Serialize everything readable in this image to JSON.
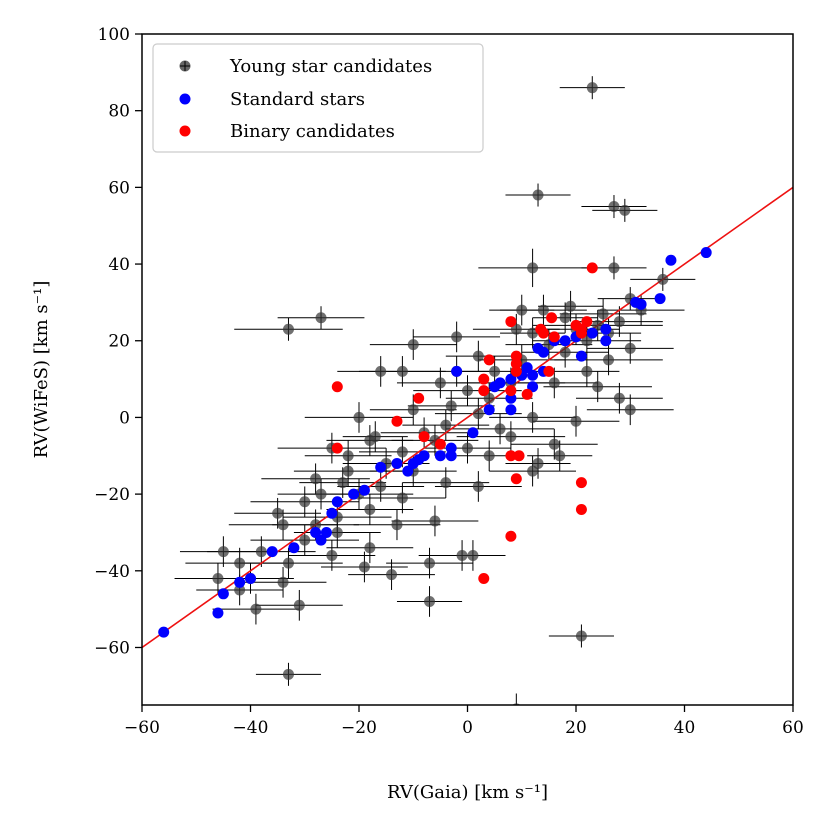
{
  "chart_data": {
    "type": "scatter",
    "xlabel": "RV(Gaia) [km s⁻¹]",
    "ylabel": "RV(WiFeS) [km s⁻¹]",
    "xlim": [
      -60,
      60
    ],
    "ylim": [
      -75,
      100
    ],
    "xticks": [
      -60,
      -40,
      -20,
      0,
      20,
      40,
      60
    ],
    "yticks": [
      -60,
      -40,
      -20,
      0,
      20,
      40,
      60,
      80,
      100
    ],
    "xtick_labels": [
      "−60",
      "−40",
      "−20",
      "0",
      "20",
      "40",
      "60"
    ],
    "ytick_labels": [
      "−60",
      "−40",
      "−20",
      "0",
      "20",
      "40",
      "60",
      "80",
      "100"
    ],
    "grid": false,
    "legend_position": "top-left",
    "reference_line": {
      "label": "",
      "x": [
        -60,
        60
      ],
      "y": [
        -60,
        60
      ],
      "color": "#ee1111"
    },
    "series": [
      {
        "name": "Young star candidates",
        "color": "#333333",
        "marker": "circle-with-errorbars",
        "points": [
          [
            23,
            86,
            6,
            3
          ],
          [
            13,
            58,
            6,
            3
          ],
          [
            27,
            55,
            6,
            3
          ],
          [
            29,
            54,
            6,
            3
          ],
          [
            12,
            39,
            10,
            5
          ],
          [
            27,
            39,
            6,
            3
          ],
          [
            36,
            36,
            6,
            3
          ],
          [
            30,
            31,
            6,
            3
          ],
          [
            -27,
            26,
            8,
            3
          ],
          [
            -33,
            23,
            10,
            3
          ],
          [
            14,
            28,
            8,
            4
          ],
          [
            10,
            28,
            6,
            4
          ],
          [
            -10,
            19,
            8,
            4
          ],
          [
            -2,
            21,
            8,
            4
          ],
          [
            24,
            24,
            12,
            4
          ],
          [
            28,
            25,
            8,
            4
          ],
          [
            22,
            20,
            10,
            4
          ],
          [
            18,
            17,
            8,
            4
          ],
          [
            26,
            15,
            10,
            4
          ],
          [
            30,
            18,
            8,
            4
          ],
          [
            -16,
            12,
            8,
            4
          ],
          [
            -12,
            12,
            8,
            4
          ],
          [
            -5,
            9,
            8,
            4
          ],
          [
            0,
            7,
            10,
            4
          ],
          [
            4,
            5,
            8,
            4
          ],
          [
            8,
            9,
            10,
            4
          ],
          [
            16,
            9,
            8,
            4
          ],
          [
            24,
            8,
            10,
            4
          ],
          [
            28,
            5,
            8,
            4
          ],
          [
            -20,
            0,
            10,
            4
          ],
          [
            -10,
            2,
            8,
            4
          ],
          [
            -4,
            -2,
            8,
            4
          ],
          [
            2,
            1,
            8,
            4
          ],
          [
            6,
            -3,
            10,
            4
          ],
          [
            12,
            0,
            8,
            4
          ],
          [
            20,
            -1,
            8,
            4
          ],
          [
            30,
            2,
            8,
            4
          ],
          [
            -25,
            -8,
            10,
            4
          ],
          [
            -18,
            -6,
            8,
            4
          ],
          [
            -12,
            -9,
            8,
            4
          ],
          [
            -6,
            -6,
            8,
            4
          ],
          [
            0,
            -8,
            8,
            4
          ],
          [
            8,
            -5,
            10,
            4
          ],
          [
            16,
            -7,
            8,
            4
          ],
          [
            -28,
            -16,
            10,
            4
          ],
          [
            -22,
            -14,
            10,
            4
          ],
          [
            -16,
            -18,
            8,
            4
          ],
          [
            -10,
            -14,
            8,
            4
          ],
          [
            -4,
            -17,
            8,
            4
          ],
          [
            2,
            -18,
            8,
            4
          ],
          [
            12,
            -14,
            8,
            4
          ],
          [
            -30,
            -22,
            10,
            4
          ],
          [
            -24,
            -26,
            10,
            4
          ],
          [
            -18,
            -24,
            8,
            4
          ],
          [
            -12,
            -21,
            8,
            4
          ],
          [
            -6,
            -27,
            8,
            4
          ],
          [
            -34,
            -28,
            10,
            4
          ],
          [
            -30,
            -32,
            10,
            4
          ],
          [
            -24,
            -30,
            8,
            4
          ],
          [
            -18,
            -34,
            8,
            4
          ],
          [
            -38,
            -35,
            10,
            4
          ],
          [
            -33,
            -38,
            10,
            4
          ],
          [
            -42,
            -38,
            10,
            4
          ],
          [
            -45,
            -35,
            8,
            4
          ],
          [
            -46,
            -42,
            8,
            4
          ],
          [
            -42,
            -45,
            8,
            4
          ],
          [
            -39,
            -50,
            8,
            4
          ],
          [
            -31,
            -49,
            8,
            4
          ],
          [
            -34,
            -43,
            8,
            4
          ],
          [
            -25,
            -36,
            8,
            4
          ],
          [
            -19,
            -39,
            8,
            4
          ],
          [
            -14,
            -41,
            8,
            4
          ],
          [
            -7,
            -38,
            8,
            4
          ],
          [
            -1,
            -36,
            8,
            4
          ],
          [
            1,
            -36,
            6,
            4
          ],
          [
            -7,
            -48,
            6,
            4
          ],
          [
            21,
            -57,
            6,
            3
          ],
          [
            -33,
            -67,
            6,
            3
          ],
          [
            9,
            -76,
            8,
            4
          ],
          [
            -40,
            -42,
            8,
            4
          ],
          [
            -20,
            -20,
            10,
            4
          ],
          [
            -15,
            -12,
            8,
            4
          ],
          [
            -8,
            -4,
            8,
            4
          ],
          [
            -3,
            3,
            8,
            4
          ],
          [
            5,
            12,
            8,
            4
          ],
          [
            10,
            15,
            8,
            4
          ],
          [
            15,
            19,
            8,
            4
          ],
          [
            20,
            23,
            8,
            4
          ],
          [
            25,
            27,
            8,
            4
          ],
          [
            32,
            28,
            8,
            4
          ],
          [
            19,
            29,
            6,
            4
          ],
          [
            9,
            23,
            8,
            4
          ],
          [
            -27,
            -20,
            8,
            4
          ],
          [
            -22,
            -10,
            8,
            4
          ],
          [
            -35,
            -25,
            8,
            4
          ],
          [
            -28,
            -28,
            8,
            4
          ],
          [
            -13,
            -28,
            8,
            4
          ],
          [
            -23,
            -17,
            8,
            4
          ],
          [
            -17,
            -5,
            6,
            4
          ],
          [
            4,
            -10,
            6,
            4
          ],
          [
            13,
            -12,
            6,
            4
          ],
          [
            17,
            -10,
            6,
            4
          ],
          [
            -2,
            12,
            6,
            4
          ],
          [
            2,
            16,
            6,
            4
          ],
          [
            22,
            12,
            6,
            4
          ],
          [
            26,
            22,
            6,
            4
          ],
          [
            18,
            26,
            6,
            4
          ],
          [
            12,
            22,
            6,
            4
          ]
        ]
      },
      {
        "name": "Standard stars",
        "color": "#0000ff",
        "marker": "circle",
        "points": [
          [
            44,
            43
          ],
          [
            37.5,
            41
          ],
          [
            35.5,
            31
          ],
          [
            32,
            29.5
          ],
          [
            31,
            30
          ],
          [
            25.5,
            23
          ],
          [
            25.5,
            20
          ],
          [
            23,
            22
          ],
          [
            21,
            16
          ],
          [
            20,
            21
          ],
          [
            18,
            20
          ],
          [
            16,
            20
          ],
          [
            13,
            18
          ],
          [
            14,
            17
          ],
          [
            14,
            12
          ],
          [
            12,
            11
          ],
          [
            10,
            11
          ],
          [
            11,
            13
          ],
          [
            8,
            10
          ],
          [
            6,
            9
          ],
          [
            5,
            8
          ],
          [
            12,
            8
          ],
          [
            8,
            5
          ],
          [
            8,
            2
          ],
          [
            4,
            2
          ],
          [
            -2,
            12
          ],
          [
            1,
            -4
          ],
          [
            -3,
            -8
          ],
          [
            -3,
            -10
          ],
          [
            -5,
            -10
          ],
          [
            -8,
            -10
          ],
          [
            -9,
            -11
          ],
          [
            -10,
            -12
          ],
          [
            -11,
            -14
          ],
          [
            -13,
            -12
          ],
          [
            -16,
            -13
          ],
          [
            -19,
            -19
          ],
          [
            -21,
            -20
          ],
          [
            -24,
            -22
          ],
          [
            -25,
            -25
          ],
          [
            -26,
            -30
          ],
          [
            -27,
            -32
          ],
          [
            -28,
            -30
          ],
          [
            -32,
            -34
          ],
          [
            -36,
            -35
          ],
          [
            -40,
            -42
          ],
          [
            -42,
            -43
          ],
          [
            -45,
            -46
          ],
          [
            -46,
            -51
          ],
          [
            -56,
            -56
          ]
        ]
      },
      {
        "name": "Binary candidates",
        "color": "#ff0000",
        "marker": "circle",
        "points": [
          [
            23,
            39
          ],
          [
            22,
            25
          ],
          [
            21,
            22
          ],
          [
            20,
            24
          ],
          [
            21,
            23
          ],
          [
            15.5,
            26
          ],
          [
            14,
            22
          ],
          [
            13.5,
            23
          ],
          [
            8,
            25
          ],
          [
            9,
            16
          ],
          [
            9,
            14
          ],
          [
            4,
            15
          ],
          [
            3,
            10
          ],
          [
            3,
            7
          ],
          [
            8,
            7
          ],
          [
            9,
            12
          ],
          [
            11,
            6
          ],
          [
            15,
            12
          ],
          [
            16,
            21
          ],
          [
            -24,
            8
          ],
          [
            -9,
            5
          ],
          [
            -8,
            -5
          ],
          [
            -13,
            -1
          ],
          [
            -5,
            -7
          ],
          [
            -24,
            -8
          ],
          [
            8,
            -10
          ],
          [
            9.5,
            -10
          ],
          [
            9,
            -16
          ],
          [
            21,
            -17
          ],
          [
            21,
            -24
          ],
          [
            8,
            -31
          ],
          [
            3,
            -42
          ]
        ]
      }
    ]
  }
}
